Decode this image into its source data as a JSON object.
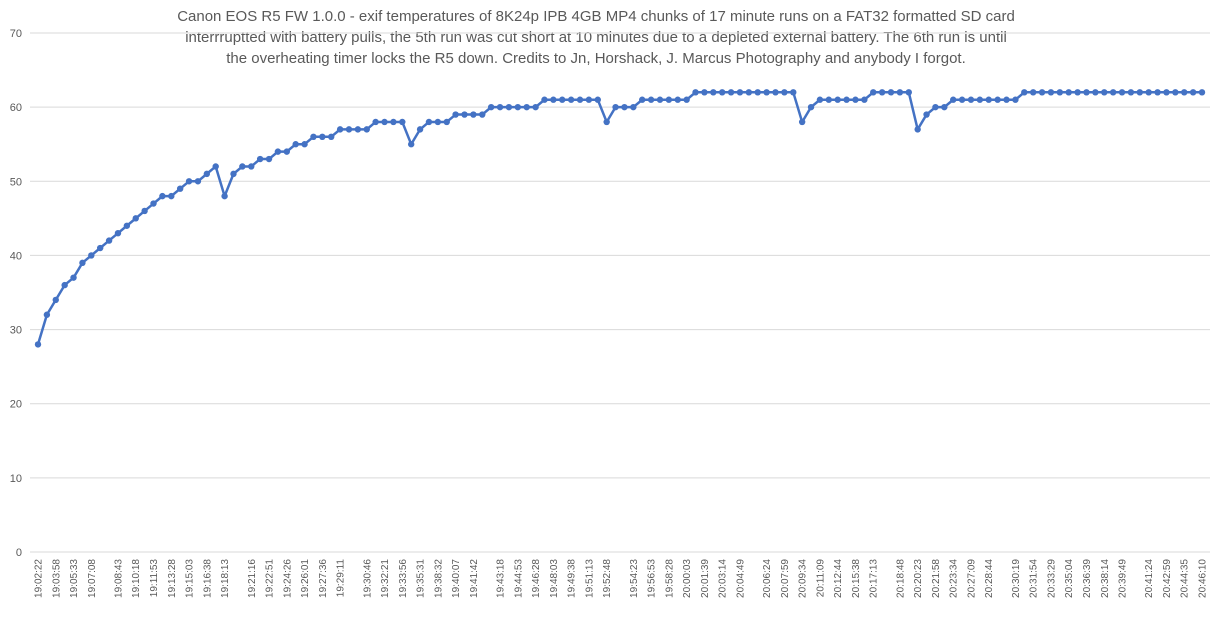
{
  "chart_data": {
    "type": "line",
    "title_lines": [
      "Canon EOS R5 FW 1.0.0 - exif temperatures of 8K24p IPB 4GB MP4 chunks of 17 minute runs on a FAT32 formatted SD card",
      "interrruptted with battery pulls, the 5th run was cut short at 10 minutes due to a depleted external battery. The 6th run is until",
      "the overheating timer locks the R5 down. Credits to Jn, Horshack, J. Marcus Photography and anybody I forgot."
    ],
    "xlabel": "",
    "ylabel": "",
    "ylim": [
      0,
      70
    ],
    "yticks": [
      0,
      10,
      20,
      30,
      40,
      50,
      60,
      70
    ],
    "grid": "horizontal",
    "legend": "none",
    "colors": {
      "line": "#4472C4",
      "grid": "#D9D9D9",
      "text": "#595959"
    },
    "x_tick_labels": [
      "19:02:22",
      "19:03:58",
      "19:05:33",
      "19:07:08",
      "19:08:43",
      "19:10:18",
      "19:11:53",
      "19:13:28",
      "19:15:03",
      "19:16:38",
      "19:18:13",
      "19:21:16",
      "19:22:51",
      "19:24:26",
      "19:26:01",
      "19:27:36",
      "19:29:11",
      "19:30:46",
      "19:32:21",
      "19:33:56",
      "19:35:31",
      "19:38:32",
      "19:40:07",
      "19:41:42",
      "19:43:18",
      "19:44:53",
      "19:46:28",
      "19:48:03",
      "19:49:38",
      "19:51:13",
      "19:52:48",
      "19:54:23",
      "19:56:53",
      "19:58:28",
      "20:00:03",
      "20:01:39",
      "20:03:14",
      "20:04:49",
      "20:06:24",
      "20:07:59",
      "20:09:34",
      "20:11:09",
      "20:12:44",
      "20:15:38",
      "20:17:13",
      "20:18:48",
      "20:20:23",
      "20:21:58",
      "20:23:34",
      "20:27:09",
      "20:28:44",
      "20:30:19",
      "20:31:54",
      "20:33:29",
      "20:35:04",
      "20:36:39",
      "20:38:14",
      "20:39:49",
      "20:41:24",
      "20:42:59",
      "20:44:35",
      "20:46:10"
    ],
    "values": [
      28,
      32,
      34,
      36,
      37,
      39,
      40,
      41,
      42,
      43,
      44,
      45,
      46,
      47,
      48,
      48,
      49,
      50,
      50,
      51,
      52,
      48,
      51,
      52,
      52,
      53,
      53,
      54,
      54,
      55,
      55,
      56,
      56,
      56,
      57,
      57,
      57,
      57,
      58,
      58,
      58,
      58,
      55,
      57,
      58,
      58,
      58,
      59,
      59,
      59,
      59,
      60,
      60,
      60,
      60,
      60,
      60,
      61,
      61,
      61,
      61,
      61,
      61,
      61,
      58,
      60,
      60,
      60,
      61,
      61,
      61,
      61,
      61,
      61,
      62,
      62,
      62,
      62,
      62,
      62,
      62,
      62,
      62,
      62,
      62,
      62,
      58,
      60,
      61,
      61,
      61,
      61,
      61,
      61,
      62,
      62,
      62,
      62,
      62,
      57,
      59,
      60,
      60,
      61,
      61,
      61,
      61,
      61,
      61,
      61,
      61,
      62,
      62,
      62,
      62,
      62,
      62,
      62,
      62,
      62,
      62,
      62,
      62,
      62,
      62,
      62,
      62,
      62,
      62,
      62,
      62,
      62
    ]
  }
}
